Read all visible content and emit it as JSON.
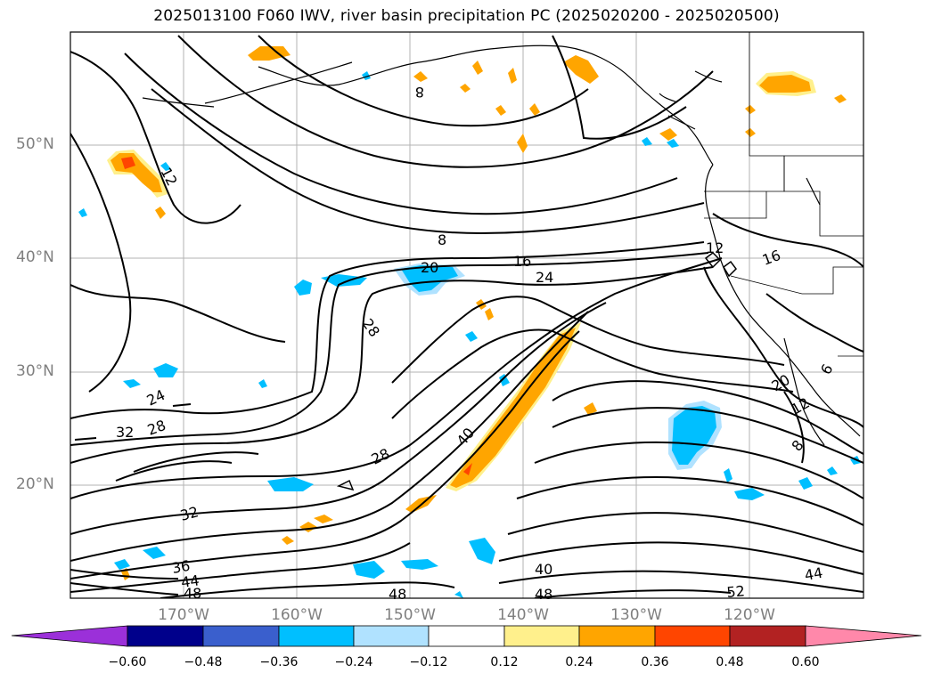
{
  "title": "2025013100 F060 IWV, river basin precipitation PC (2025020200 - 2025020500)",
  "map": {
    "lat_labels": [
      "50°N",
      "40°N",
      "30°N",
      "20°N"
    ],
    "lon_labels": [
      "170°W",
      "160°W",
      "150°W",
      "140°W",
      "130°W",
      "120°W"
    ],
    "contour_labels": [
      "12",
      "8",
      "16",
      "20",
      "24",
      "28",
      "24",
      "28",
      "32",
      "28",
      "32",
      "36",
      "44",
      "48",
      "40",
      "48",
      "48",
      "52",
      "44",
      "20",
      "12",
      "8",
      "16",
      "12",
      "6",
      "40",
      "8"
    ]
  },
  "colorbar": {
    "ticks": [
      "−0.60",
      "−0.48",
      "−0.36",
      "−0.24",
      "−0.12",
      "0.12",
      "0.24",
      "0.36",
      "0.48",
      "0.60"
    ],
    "colors": [
      "#9b30d9",
      "#00008b",
      "#3a5fcd",
      "#00bfff",
      "#b0e2ff",
      "#ffffff",
      "#fff08c",
      "#ffa500",
      "#ff4500",
      "#b22222",
      "#ff88aa"
    ]
  }
}
